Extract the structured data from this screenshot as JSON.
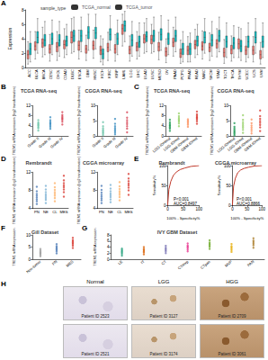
{
  "chart_data": [
    {
      "panel": "A",
      "type": "boxplot",
      "y_label": "Expression",
      "legend_title": "sample_type",
      "legend": "top",
      "categories": [
        "ACC",
        "BLCA",
        "BRCA",
        "CESC",
        "CHOL",
        "COAD",
        "DLBC",
        "ESCA",
        "GBM",
        "HNSC",
        "KICH",
        "KIRC",
        "KIRP",
        "LAML",
        "LGG",
        "LIHC",
        "LUAD",
        "LUSC",
        "MESO",
        "OV",
        "PAAD",
        "PCPG",
        "PRAD",
        "READ",
        "SARC",
        "SKCM",
        "STAD",
        "TGCT",
        "THCA",
        "THYM",
        "UCEC",
        "UCS",
        "UVM"
      ],
      "ylim": [
        0,
        8
      ],
      "yticks": [
        0,
        2,
        4,
        6,
        8
      ],
      "series": [
        {
          "name": "TCGA_normal",
          "color": "#f8766d",
          "values": [
            [
              0.5,
              1.2,
              1.8,
              2.4,
              3.6
            ],
            [
              1.2,
              2.4,
              3.0,
              3.6,
              5.0
            ],
            [
              1.5,
              2.8,
              3.4,
              4.0,
              5.6
            ],
            [
              0.9,
              2.0,
              2.6,
              3.2,
              4.6
            ],
            [
              1.0,
              2.2,
              2.9,
              3.5,
              5.0
            ],
            [
              1.4,
              2.6,
              3.2,
              3.8,
              5.4
            ],
            [
              2.0,
              3.4,
              4.2,
              5.0,
              6.8
            ],
            [
              1.2,
              2.4,
              3.1,
              3.7,
              5.2
            ],
            [
              1.0,
              2.0,
              2.6,
              3.1,
              4.5
            ],
            [
              1.3,
              2.5,
              3.1,
              3.7,
              5.2
            ],
            [
              0.8,
              1.8,
              2.4,
              3.0,
              4.4
            ],
            [
              1.0,
              2.2,
              2.8,
              3.4,
              4.9
            ],
            [
              0.9,
              2.0,
              2.6,
              3.2,
              4.6
            ],
            [
              3.0,
              4.6,
              5.4,
              6.0,
              7.4
            ],
            [
              0.9,
              1.9,
              2.5,
              3.0,
              4.4
            ],
            [
              1.2,
              2.3,
              2.9,
              3.5,
              5.0
            ],
            [
              2.0,
              3.4,
              4.0,
              4.6,
              6.2
            ],
            [
              2.0,
              3.3,
              3.9,
              4.5,
              6.0
            ],
            [
              1.1,
              2.3,
              2.9,
              3.5,
              4.9
            ],
            [
              0.7,
              1.6,
              2.2,
              2.8,
              4.0
            ],
            [
              1.6,
              2.9,
              3.5,
              4.1,
              5.6
            ],
            [
              0.6,
              1.4,
              2.0,
              2.6,
              3.8
            ],
            [
              0.8,
              1.8,
              2.4,
              3.0,
              4.3
            ],
            [
              1.4,
              2.6,
              3.2,
              3.8,
              5.3
            ],
            [
              1.2,
              2.4,
              3.0,
              3.6,
              5.1
            ],
            [
              1.0,
              2.2,
              2.8,
              3.4,
              4.8
            ],
            [
              1.5,
              2.7,
              3.3,
              3.9,
              5.4
            ],
            [
              0.6,
              1.5,
              2.1,
              2.7,
              3.9
            ],
            [
              0.9,
              1.9,
              2.5,
              3.1,
              4.4
            ],
            [
              1.4,
              2.6,
              3.3,
              4.0,
              5.6
            ],
            [
              0.8,
              1.8,
              2.4,
              3.0,
              4.3
            ],
            [
              0.8,
              1.8,
              2.4,
              3.0,
              4.3
            ],
            [
              0.5,
              1.2,
              1.8,
              2.4,
              3.5
            ]
          ]
        },
        {
          "name": "TCGA_tumor",
          "color": "#00bfc4",
          "values": [
            [
              0.8,
              1.8,
              2.6,
              3.4,
              5.0
            ],
            [
              2.0,
              3.4,
              4.2,
              5.0,
              6.8
            ],
            [
              1.8,
              3.0,
              3.8,
              4.6,
              6.4
            ],
            [
              1.8,
              3.2,
              4.0,
              4.8,
              6.6
            ],
            [
              1.6,
              3.0,
              3.8,
              4.6,
              6.4
            ],
            [
              1.8,
              3.0,
              3.7,
              4.4,
              6.0
            ],
            [
              2.2,
              3.6,
              4.4,
              5.2,
              7.0
            ],
            [
              2.2,
              3.6,
              4.4,
              5.2,
              7.0
            ],
            [
              2.4,
              4.0,
              4.9,
              5.7,
              7.4
            ],
            [
              2.6,
              4.0,
              4.8,
              5.6,
              7.4
            ],
            [
              0.4,
              1.2,
              1.9,
              2.6,
              4.0
            ],
            [
              2.4,
              3.8,
              4.6,
              5.4,
              7.2
            ],
            [
              1.8,
              3.2,
              4.0,
              4.8,
              6.6
            ],
            [
              3.6,
              5.0,
              5.8,
              6.5,
              7.8
            ],
            [
              1.6,
              3.0,
              3.8,
              4.6,
              6.4
            ],
            [
              1.6,
              2.8,
              3.6,
              4.4,
              6.2
            ],
            [
              2.2,
              3.6,
              4.3,
              5.0,
              6.8
            ],
            [
              2.2,
              3.6,
              4.4,
              5.2,
              7.0
            ],
            [
              2.4,
              3.8,
              4.6,
              5.4,
              7.2
            ],
            [
              1.8,
              3.2,
              4.0,
              4.8,
              6.6
            ],
            [
              2.2,
              3.6,
              4.4,
              5.2,
              7.0
            ],
            [
              0.8,
              1.8,
              2.6,
              3.4,
              5.0
            ],
            [
              0.8,
              1.8,
              2.6,
              3.4,
              4.8
            ],
            [
              1.8,
              3.0,
              3.7,
              4.4,
              6.0
            ],
            [
              2.0,
              3.4,
              4.2,
              5.0,
              6.8
            ],
            [
              1.6,
              3.0,
              3.8,
              4.6,
              6.4
            ],
            [
              2.2,
              3.6,
              4.4,
              5.2,
              7.0
            ],
            [
              1.4,
              2.8,
              3.6,
              4.4,
              6.2
            ],
            [
              1.4,
              2.6,
              3.4,
              4.2,
              5.8
            ],
            [
              1.0,
              2.2,
              3.0,
              3.8,
              5.4
            ],
            [
              1.4,
              2.8,
              3.6,
              4.4,
              6.2
            ],
            [
              2.0,
              3.4,
              4.2,
              5.0,
              6.8
            ],
            [
              1.4,
              2.8,
              3.6,
              4.4,
              6.2
            ]
          ]
        }
      ]
    },
    {
      "panel": "B",
      "type": "scatter",
      "title": "TCGA RNA-seq",
      "y_label": "TREM1 mRNA expression (log2 transformation)",
      "categories": [
        "Grade II",
        "Grade III",
        "Grade IV"
      ],
      "colors": [
        "#66c2a5",
        "#3288bd",
        "#d53e4f"
      ],
      "ylim": [
        0,
        12
      ],
      "yticks": [
        0,
        4,
        8,
        12
      ],
      "values": [
        [
          2.1,
          3.0,
          3.5,
          4.0,
          4.4,
          4.8,
          5.3,
          6.2
        ],
        [
          2.8,
          3.6,
          4.2,
          4.7,
          5.1,
          5.6,
          6.2,
          7.4
        ],
        [
          4.5,
          5.6,
          6.3,
          6.8,
          7.2,
          7.7,
          8.3,
          9.4
        ]
      ]
    },
    {
      "type": "scatter",
      "title": "CGGA RNA-seq",
      "y_label": "TREM1 mRNA expression (log2 transformation)",
      "categories": [
        "Grade II",
        "Grade III",
        "Grade IV"
      ],
      "colors": [
        "#66c2a5",
        "#3288bd",
        "#d53e4f"
      ],
      "ylim": [
        0,
        10
      ],
      "yticks": [
        0,
        5,
        10
      ],
      "values": [
        [
          0.3,
          0.8,
          1.2,
          1.6,
          2.0,
          2.5,
          3.2,
          4.5
        ],
        [
          0.5,
          1.1,
          1.6,
          2.1,
          2.6,
          3.2,
          4.0,
          5.6
        ],
        [
          1.2,
          2.4,
          3.2,
          3.9,
          4.5,
          5.2,
          6.0,
          7.8
        ]
      ]
    },
    {
      "panel": "C",
      "type": "scatter",
      "title": "TCGA RNA-seq",
      "y_label": "TREM1 mRNA expression (log2 transformation)",
      "categories": [
        "LGG-IDHmut",
        "LGG-IDHwt",
        "GBM-IDHmut",
        "GBM-IDHwt"
      ],
      "colors": [
        "#1a9850",
        "#91cf60",
        "#fc8d59",
        "#d73027"
      ],
      "ylim": [
        0,
        12
      ],
      "yticks": [
        0,
        4,
        8,
        12
      ],
      "values": [
        [
          2.0,
          2.9,
          3.4,
          3.9,
          4.3,
          4.8,
          5.4,
          6.4
        ],
        [
          3.8,
          4.9,
          5.6,
          6.1,
          6.6,
          7.1,
          7.8,
          8.9
        ],
        [
          3.6,
          4.4,
          5.0,
          5.5,
          6.0,
          6.6
        ],
        [
          4.8,
          5.8,
          6.5,
          7.0,
          7.4,
          7.9,
          8.5,
          9.6
        ]
      ]
    },
    {
      "type": "scatter",
      "title": "CGGA RNA-seq",
      "y_label": "TREM1 mRNA expression (log2 transformation)",
      "categories": [
        "LGG-IDHmut",
        "LGG-IDHwt",
        "GBM-IDHmut",
        "GBM-IDHwt"
      ],
      "colors": [
        "#1a9850",
        "#91cf60",
        "#fc8d59",
        "#d73027"
      ],
      "ylim": [
        0,
        10
      ],
      "yticks": [
        0,
        5,
        10
      ],
      "values": [
        [
          0.2,
          0.7,
          1.1,
          1.5,
          1.9,
          2.4,
          3.0,
          4.2
        ],
        [
          1.0,
          2.0,
          2.7,
          3.3,
          3.9,
          4.5,
          5.3,
          6.8
        ],
        [
          0.8,
          1.6,
          2.2,
          2.8,
          3.4,
          4.2,
          5.4
        ],
        [
          1.6,
          2.8,
          3.6,
          4.3,
          4.9,
          5.6,
          6.5,
          8.4
        ]
      ]
    },
    {
      "panel": "D",
      "type": "scatter",
      "title": "Rembrandt",
      "y_label": "TREM1 mRNA expression (log2 transformation)",
      "categories": [
        "PN",
        "NE",
        "CL",
        "MES"
      ],
      "colors": [
        "#4575b4",
        "#74add1",
        "#fdae61",
        "#d73027"
      ],
      "ylim": [
        4,
        12
      ],
      "yticks": [
        4,
        8,
        12
      ],
      "values": [
        [
          5.0,
          5.6,
          6.0,
          6.4,
          6.8,
          7.2,
          7.8,
          8.8
        ],
        [
          5.2,
          5.9,
          6.3,
          6.7,
          7.1,
          7.6,
          8.2,
          9.0
        ],
        [
          5.6,
          6.3,
          6.8,
          7.2,
          7.6,
          8.1,
          8.7,
          9.6
        ],
        [
          6.6,
          7.6,
          8.2,
          8.7,
          9.1,
          9.6,
          10.2,
          11.2
        ]
      ]
    },
    {
      "type": "scatter",
      "title": "CGGA microarray",
      "y_label": "TREM1 mRNA expression (log2 transformation)",
      "categories": [
        "PN",
        "NE",
        "CL",
        "MES"
      ],
      "colors": [
        "#4575b4",
        "#74add1",
        "#fdae61",
        "#d73027"
      ],
      "ylim": [
        4,
        12
      ],
      "yticks": [
        4,
        8,
        12
      ],
      "values": [
        [
          5.2,
          5.8,
          6.2,
          6.6,
          7.0,
          7.5,
          8.1,
          9.0
        ],
        [
          5.4,
          6.0,
          6.5,
          6.9,
          7.3,
          7.8,
          8.4,
          9.2
        ],
        [
          5.8,
          6.5,
          7.0,
          7.4,
          7.8,
          8.3,
          8.9,
          9.8
        ],
        [
          7.0,
          8.0,
          8.6,
          9.1,
          9.5,
          10.0,
          10.6,
          11.6
        ]
      ]
    },
    {
      "panel": "E",
      "type": "line",
      "title": "Rembrandt",
      "x_label": "100% - Specificity%",
      "y_label": "Sensitivity%",
      "color": "#c0392b",
      "annotation": "P<0.001\nAUC=0.8497",
      "x": [
        0,
        4,
        10,
        18,
        28,
        40,
        55,
        75,
        100
      ],
      "values": [
        0,
        40,
        60,
        75,
        84,
        90,
        94,
        98,
        100
      ],
      "xlim": [
        0,
        100
      ],
      "xticks": [
        0,
        50,
        100
      ],
      "ylim": [
        0,
        100
      ],
      "yticks": [
        0,
        50,
        100
      ]
    },
    {
      "type": "line",
      "title": "CGGA microarray",
      "x_label": "100% - Specificity%",
      "y_label": "Sensitivity%",
      "color": "#c0392b",
      "annotation": "P<0.001\nAUC=0.8866",
      "x": [
        0,
        4,
        10,
        18,
        28,
        40,
        55,
        75,
        100
      ],
      "values": [
        0,
        48,
        68,
        82,
        89,
        93,
        96,
        99,
        100
      ],
      "xlim": [
        0,
        100
      ],
      "xticks": [
        0,
        50,
        100
      ],
      "ylim": [
        0,
        100
      ],
      "yticks": [
        0,
        50,
        100
      ]
    },
    {
      "panel": "F",
      "type": "scatter",
      "title": "Gill Dataset",
      "y_label": "TREM1 mRNA expression",
      "categories": [
        "Non-tumor",
        "PN",
        "MES"
      ],
      "colors": [
        "#999999",
        "#4575b4",
        "#d73027"
      ],
      "ylim": [
        0,
        10
      ],
      "yticks": [
        0,
        5,
        10
      ],
      "values": [
        [
          1.2,
          1.8,
          2.3,
          2.7,
          3.1,
          3.6,
          4.2
        ],
        [
          2.4,
          3.2,
          3.8,
          4.3,
          4.8,
          5.4,
          6.2
        ],
        [
          4.6,
          5.6,
          6.3,
          6.8,
          7.3,
          7.9,
          8.8
        ]
      ]
    },
    {
      "panel": "G",
      "type": "scatter",
      "title": "IVY GBM Dataset",
      "y_label": "TREM1 mRNA expression",
      "categories": [
        "LE",
        "IT",
        "CT",
        "CTmvp",
        "CTpan",
        "MVP",
        "PAN"
      ],
      "colors": [
        "#1b9e77",
        "#d95f02",
        "#7570b3",
        "#e7298a",
        "#66a61e",
        "#e6ab02",
        "#a6761d"
      ],
      "ylim": [
        0,
        8
      ],
      "yticks": [
        0,
        2,
        4,
        6,
        8
      ],
      "values": [
        [
          1.2,
          1.8,
          2.2,
          2.6,
          3.0,
          3.5
        ],
        [
          1.6,
          2.2,
          2.6,
          3.0,
          3.4,
          4.0
        ],
        [
          2.0,
          2.6,
          3.0,
          3.4,
          3.8,
          4.4
        ],
        [
          2.6,
          3.2,
          3.7,
          4.1,
          4.5,
          5.2
        ],
        [
          3.4,
          4.1,
          4.6,
          5.0,
          5.5,
          6.2
        ],
        [
          2.4,
          3.0,
          3.5,
          3.9,
          4.3,
          5.0
        ],
        [
          3.8,
          4.6,
          5.1,
          5.6,
          6.1,
          6.9
        ]
      ]
    }
  ],
  "images": {
    "panel": "H",
    "columns": [
      "Normal",
      "LGG",
      "HGG"
    ],
    "captions": [
      [
        "Patient ID 2523",
        "Patient ID 3127",
        "Patient ID 2709"
      ],
      [
        "Patient ID 2521",
        "Patient ID 3174",
        "Patient ID 3061"
      ]
    ]
  }
}
